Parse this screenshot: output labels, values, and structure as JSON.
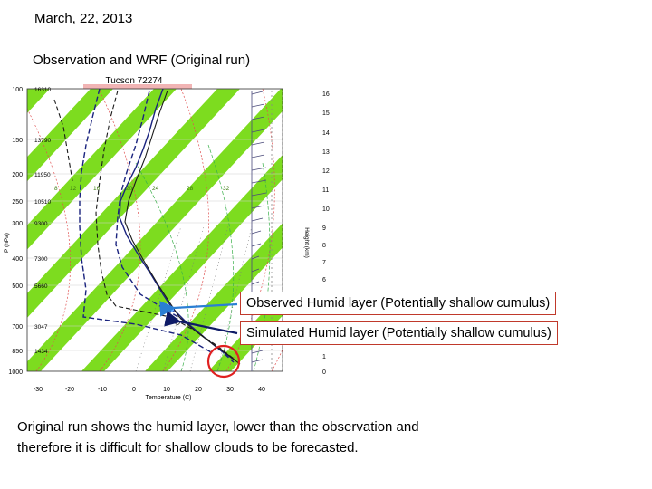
{
  "slide": {
    "date": "March, 22, 2013",
    "subtitle": "Observation and WRF (Original run)",
    "conclusion": "Original run shows the humid layer, lower than the observation and therefore it is difficult for shallow clouds to be forecasted."
  },
  "diagram": {
    "station_title": "Tucson 72274",
    "ylabel": "P (hPa)",
    "xlabel": "Temperature (C)",
    "right_axis_label": "Height (km)",
    "pressure_ticks": [
      "100",
      "150",
      "200",
      "250",
      "300",
      "400",
      "500",
      "700",
      "850",
      "1000"
    ],
    "height_ticks": [
      "16310",
      "13790",
      "11950",
      "10510",
      "9300",
      "7300",
      "5660",
      "3047",
      "1434"
    ],
    "temperature_ticks": [
      "-30",
      "-20",
      "-10",
      "0",
      "10",
      "20",
      "30",
      "40"
    ],
    "km_ticks": [
      "16",
      "15",
      "14",
      "13",
      "12",
      "11",
      "10",
      "9",
      "8",
      "7",
      "6",
      "1",
      "0"
    ],
    "colors": {
      "band": "#7ddc1f",
      "dry_adiabat": "#e05050",
      "moist_adiabat": "#3ab04a",
      "mixing_ratio": "#7a7a7a",
      "observed": "#1a237e",
      "simulated": "#1a1a1a",
      "arrow_observed": "#2a7fd4",
      "arrow_simulated": "#0e1a66",
      "highlight_circle": "#e02020"
    }
  },
  "callouts": {
    "observed": "Observed Humid layer (Potentially shallow cumulus)",
    "simulated": "Simulated Humid layer (Potentially shallow cumulus)"
  }
}
